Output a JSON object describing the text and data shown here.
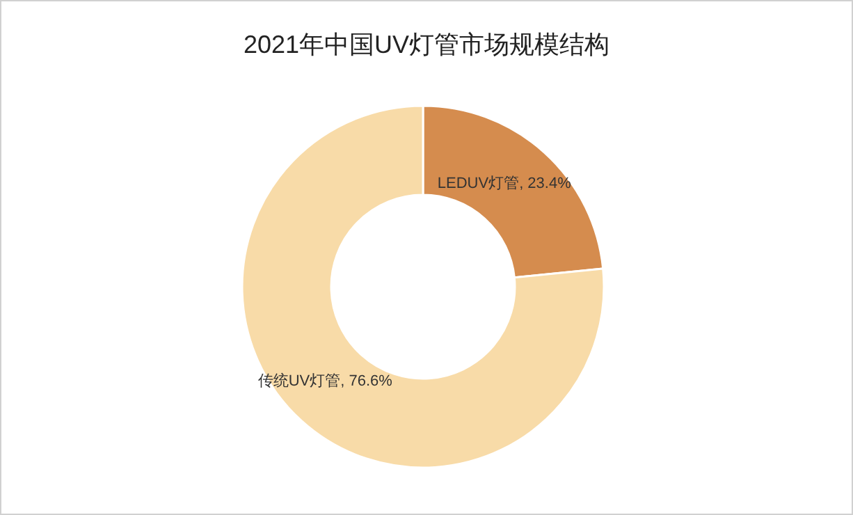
{
  "chart_data": {
    "type": "donut",
    "title": "2021年中国UV灯管市场规模结构",
    "categories": [
      "LEDUV灯管",
      "传统UV灯管"
    ],
    "values": [
      23.4,
      76.6
    ],
    "colors": [
      "#d58c4e",
      "#f8dba8"
    ],
    "value_labels": [
      ", 23.4%",
      ", 76.6%"
    ]
  }
}
